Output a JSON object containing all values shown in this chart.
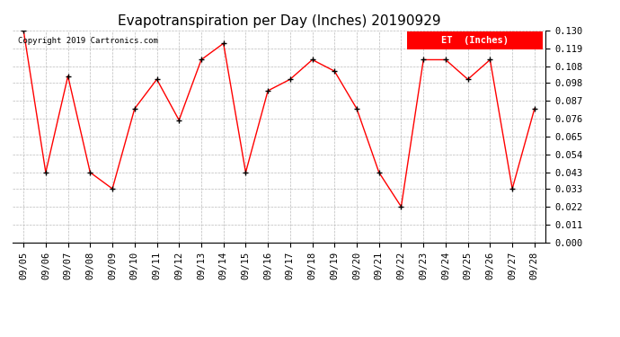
{
  "title": "Evapotranspiration per Day (Inches) 20190929",
  "copyright_text": "Copyright 2019 Cartronics.com",
  "legend_label": "ET  (Inches)",
  "legend_bg": "#ff0000",
  "legend_text_color": "#ffffff",
  "dates": [
    "09/05",
    "09/06",
    "09/07",
    "09/08",
    "09/09",
    "09/10",
    "09/11",
    "09/12",
    "09/13",
    "09/14",
    "09/15",
    "09/16",
    "09/17",
    "09/18",
    "09/19",
    "09/20",
    "09/21",
    "09/22",
    "09/23",
    "09/24",
    "09/25",
    "09/26",
    "09/27",
    "09/28"
  ],
  "values": [
    0.13,
    0.043,
    0.102,
    0.043,
    0.033,
    0.082,
    0.1,
    0.075,
    0.112,
    0.122,
    0.043,
    0.093,
    0.1,
    0.112,
    0.105,
    0.082,
    0.043,
    0.022,
    0.112,
    0.112,
    0.1,
    0.112,
    0.033,
    0.082
  ],
  "line_color": "#ff0000",
  "marker_color": "#000000",
  "ylim": [
    0.0,
    0.13
  ],
  "yticks": [
    0.0,
    0.011,
    0.022,
    0.033,
    0.043,
    0.054,
    0.065,
    0.076,
    0.087,
    0.098,
    0.108,
    0.119,
    0.13
  ],
  "bg_color": "#ffffff",
  "grid_color": "#bbbbbb",
  "title_fontsize": 11,
  "label_fontsize": 7.5
}
